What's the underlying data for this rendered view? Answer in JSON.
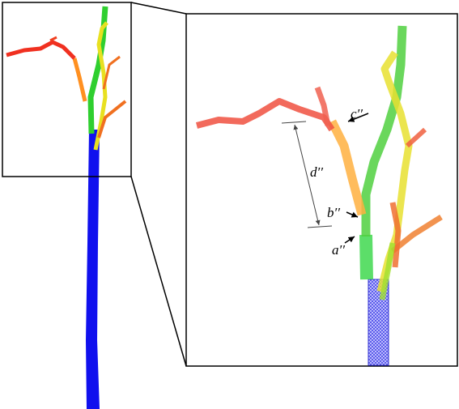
{
  "labels": {
    "d": "d′′",
    "c": "c′′",
    "b": "b′′",
    "a": "a′′"
  }
}
